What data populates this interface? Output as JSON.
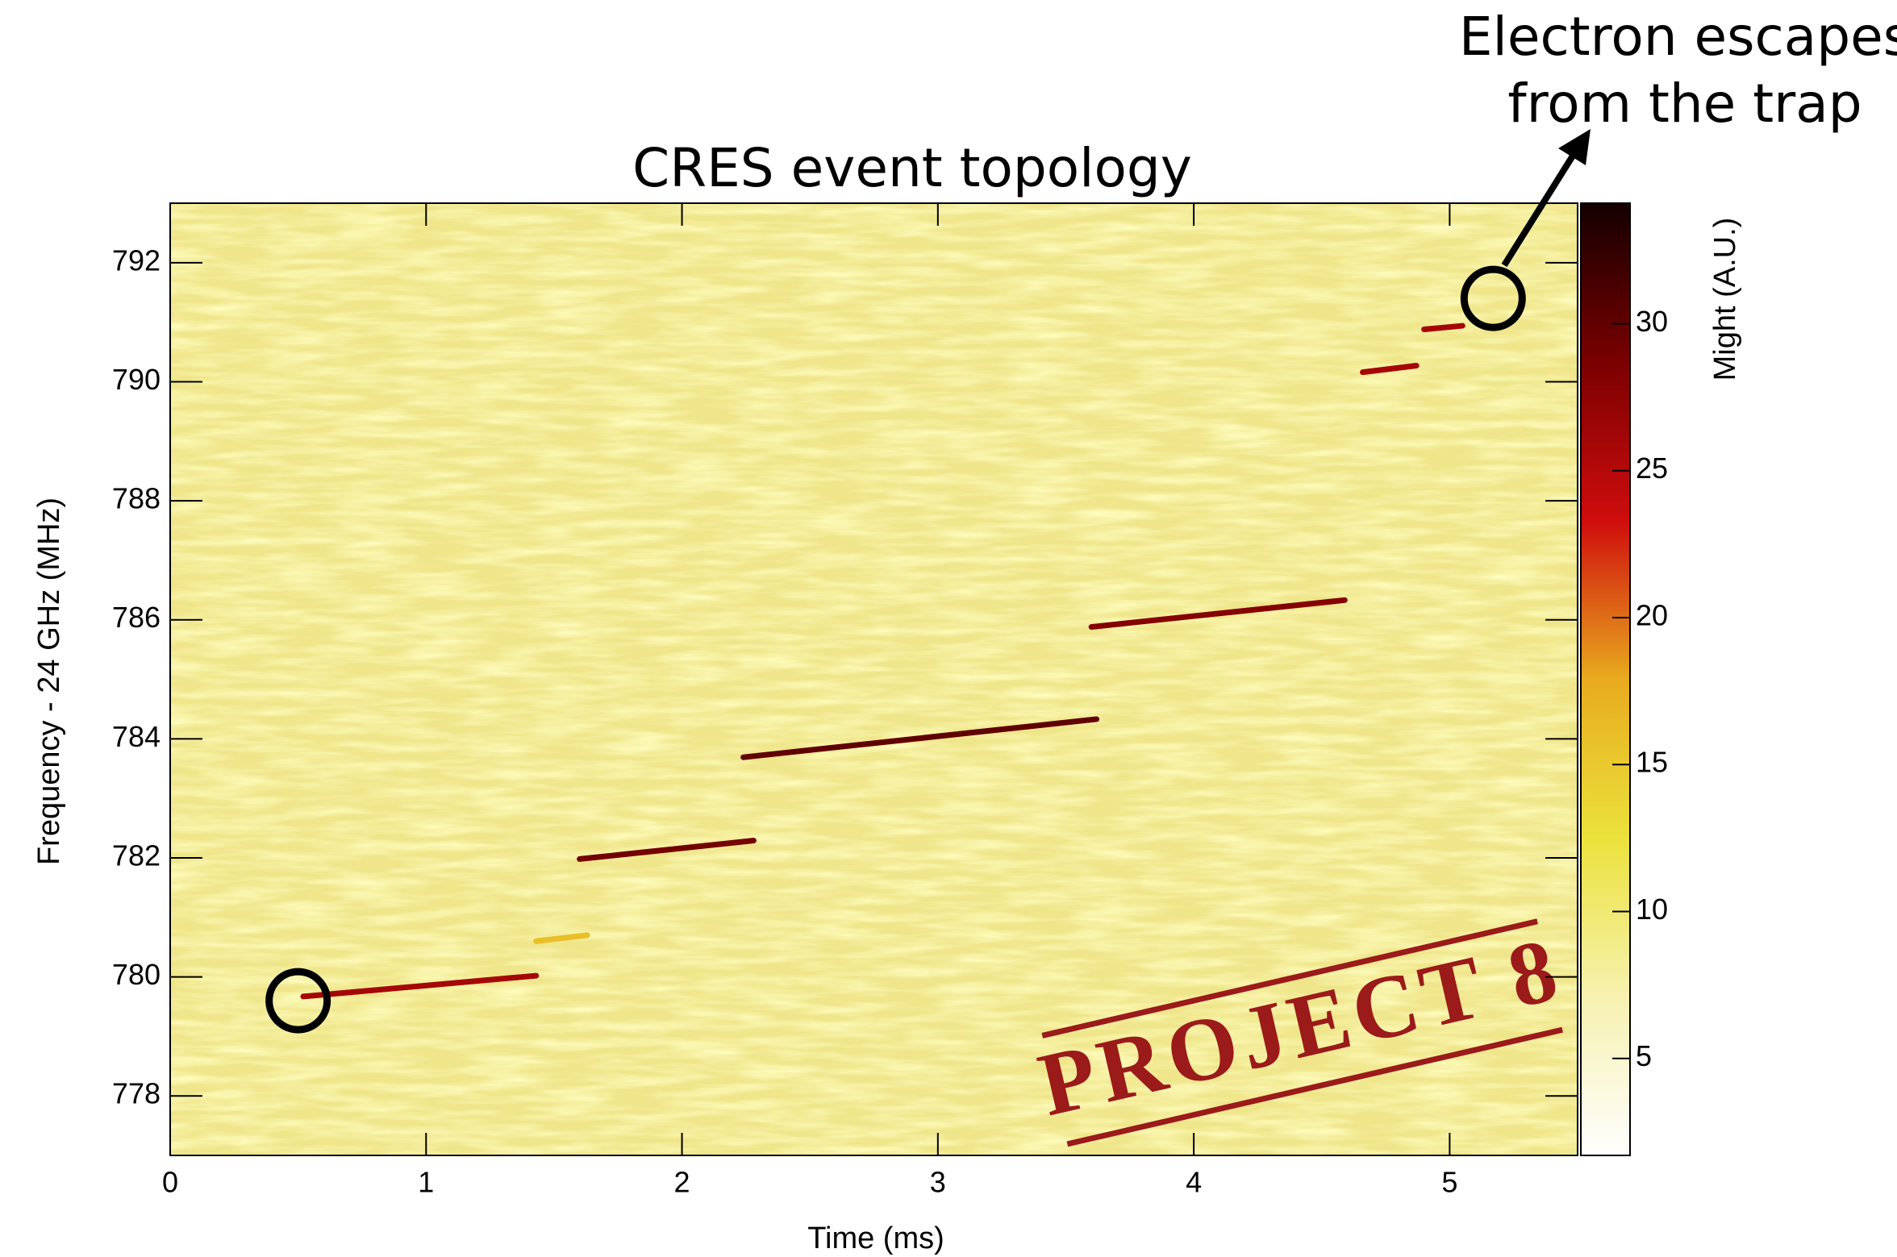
{
  "chart_data": {
    "type": "spectrogram",
    "title": "CRES event topology",
    "x_label": "Time (ms)",
    "y_label": "Frequency - 24 GHz (MHz)",
    "xlim": [
      0,
      5.5
    ],
    "xticks": [
      0,
      1,
      2,
      3,
      4,
      5
    ],
    "ylim": [
      777,
      793
    ],
    "yticks": [
      778,
      780,
      782,
      784,
      786,
      788,
      790,
      792
    ],
    "colorbar": {
      "label": "Might (A.U.)",
      "zlim": [
        1.7,
        34.1
      ],
      "zticks": [
        5,
        10,
        15,
        20,
        25,
        30
      ],
      "colormap": [
        "#ffffff",
        "#f6f1b0",
        "#ebe23c",
        "#e8ab1e",
        "#cf0d0d",
        "#7a0000",
        "#140000"
      ]
    },
    "tracks": [
      {
        "x": [
          0.52,
          1.43
        ],
        "y": [
          779.67,
          780.02
        ],
        "z": 26
      },
      {
        "x": [
          1.43,
          1.63
        ],
        "y": [
          780.6,
          780.7
        ],
        "z": 16
      },
      {
        "x": [
          1.6,
          2.28
        ],
        "y": [
          781.98,
          782.29
        ],
        "z": 29
      },
      {
        "x": [
          2.24,
          3.62
        ],
        "y": [
          783.69,
          784.33
        ],
        "z": 30
      },
      {
        "x": [
          3.6,
          4.59
        ],
        "y": [
          785.88,
          786.33
        ],
        "z": 28
      },
      {
        "x": [
          4.66,
          4.87
        ],
        "y": [
          790.16,
          790.27
        ],
        "z": 26
      },
      {
        "x": [
          4.9,
          5.05
        ],
        "y": [
          790.88,
          790.94
        ],
        "z": 26
      }
    ],
    "highlights": [
      {
        "x": 0.5,
        "y": 779.6
      },
      {
        "x": 5.17,
        "y": 791.4
      }
    ],
    "annotation": [
      "Electron escapes",
      "from the trap"
    ],
    "stamp": "PROJECT 8"
  }
}
